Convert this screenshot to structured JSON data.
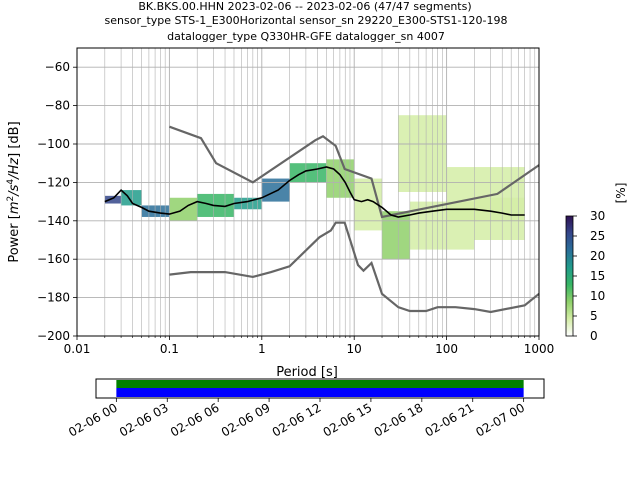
{
  "chart_data": [
    {
      "type": "heatmap",
      "title_lines": [
        "BK.BKS.00.HHN   2023-02-06 -- 2023-02-06  (47/47 segments)",
        "sensor_type STS-1_E300Horizontal sensor_sn 29220_E300-STS1-120-198",
        "datalogger_type Q330HR-GFE datalogger_sn 4007"
      ],
      "xlabel": "Period [s]",
      "ylabel_parts": [
        "Power [",
        "m",
        "2",
        "/s",
        "4",
        "/Hz",
        "] [dB]"
      ],
      "xscale": "log",
      "xlim": [
        0.01,
        1000
      ],
      "ylim": [
        -200,
        -50
      ],
      "x_ticks": [
        0.01,
        0.1,
        1,
        10,
        100,
        1000
      ],
      "x_tick_labels": [
        "0.01",
        "0.1",
        "1",
        "10",
        "100",
        "1000"
      ],
      "y_ticks": [
        -200,
        -180,
        -160,
        -140,
        -120,
        -100,
        -80,
        -60
      ],
      "y_tick_labels": [
        "−200",
        "−180",
        "−160",
        "−140",
        "−120",
        "−100",
        "−80",
        "−60"
      ],
      "grid": true,
      "colorbar": {
        "label": "[%]",
        "range": [
          0,
          30
        ],
        "ticks": [
          0,
          5,
          10,
          15,
          20,
          25,
          30
        ],
        "tick_labels": [
          "0",
          "5",
          "10",
          "15",
          "20",
          "25",
          "30"
        ],
        "colors": [
          "#ffffff",
          "#d4eda6",
          "#8fd06a",
          "#37b565",
          "#219c8b",
          "#2a6f99",
          "#34468a",
          "#2e1152"
        ]
      },
      "series": [
        {
          "role": "mean",
          "color": "#000000",
          "points": [
            [
              0.02,
              -130
            ],
            [
              0.025,
              -128
            ],
            [
              0.03,
              -124
            ],
            [
              0.035,
              -127
            ],
            [
              0.04,
              -131
            ],
            [
              0.05,
              -133
            ],
            [
              0.06,
              -135
            ],
            [
              0.08,
              -136
            ],
            [
              0.1,
              -136.5
            ],
            [
              0.13,
              -135
            ],
            [
              0.16,
              -132
            ],
            [
              0.2,
              -130
            ],
            [
              0.25,
              -131
            ],
            [
              0.3,
              -132
            ],
            [
              0.4,
              -132.5
            ],
            [
              0.5,
              -131
            ],
            [
              0.7,
              -130
            ],
            [
              1,
              -128
            ],
            [
              1.5,
              -124
            ],
            [
              2,
              -119
            ],
            [
              2.5,
              -116
            ],
            [
              3,
              -114
            ],
            [
              4,
              -113
            ],
            [
              5,
              -112
            ],
            [
              6,
              -113
            ],
            [
              7,
              -116
            ],
            [
              8,
              -120
            ],
            [
              9,
              -125
            ],
            [
              10,
              -129
            ],
            [
              12,
              -130
            ],
            [
              14,
              -129
            ],
            [
              16,
              -130
            ],
            [
              20,
              -133
            ],
            [
              25,
              -137
            ],
            [
              30,
              -138
            ],
            [
              40,
              -137
            ],
            [
              50,
              -136
            ],
            [
              70,
              -135
            ],
            [
              100,
              -134
            ],
            [
              150,
              -134
            ],
            [
              200,
              -134
            ],
            [
              300,
              -135
            ],
            [
              400,
              -136
            ],
            [
              500,
              -137
            ],
            [
              700,
              -137
            ]
          ]
        },
        {
          "role": "noise-model-high",
          "color": "#666666",
          "points": [
            [
              0.1,
              -91
            ],
            [
              0.22,
              -97
            ],
            [
              0.32,
              -110
            ],
            [
              0.8,
              -120
            ],
            [
              3.8,
              -98
            ],
            [
              4.6,
              -96
            ],
            [
              6.3,
              -101
            ],
            [
              7.9,
              -113
            ],
            [
              15.4,
              -118
            ],
            [
              20,
              -138
            ],
            [
              354.8,
              -126
            ],
            [
              1000,
              -111
            ]
          ]
        },
        {
          "role": "noise-model-low",
          "color": "#666666",
          "points": [
            [
              0.1,
              -168
            ],
            [
              0.17,
              -166.7
            ],
            [
              0.4,
              -166.7
            ],
            [
              0.8,
              -169.2
            ],
            [
              1.26,
              -166.7
            ],
            [
              2,
              -163.7
            ],
            [
              4.2,
              -148.6
            ],
            [
              5.6,
              -145
            ],
            [
              6.3,
              -141
            ],
            [
              7.9,
              -141
            ],
            [
              11,
              -163
            ],
            [
              12.6,
              -166
            ],
            [
              15.4,
              -162
            ],
            [
              20,
              -178
            ],
            [
              30,
              -185
            ],
            [
              40,
              -187
            ],
            [
              60,
              -187
            ],
            [
              80,
              -185
            ],
            [
              125,
              -185
            ],
            [
              200,
              -186
            ],
            [
              300,
              -187.5
            ],
            [
              700,
              -184
            ],
            [
              1000,
              -178
            ]
          ]
        }
      ],
      "density_bands": [
        {
          "x": [
            0.02,
            0.03
          ],
          "y": [
            -131,
            -127
          ],
          "level": 24
        },
        {
          "x": [
            0.03,
            0.05
          ],
          "y": [
            -132,
            -124
          ],
          "level": 18
        },
        {
          "x": [
            0.05,
            0.1
          ],
          "y": [
            -138,
            -132
          ],
          "level": 20
        },
        {
          "x": [
            0.1,
            0.2
          ],
          "y": [
            -140,
            -128
          ],
          "level": 10
        },
        {
          "x": [
            0.2,
            0.5
          ],
          "y": [
            -138,
            -126
          ],
          "level": 12
        },
        {
          "x": [
            0.5,
            1
          ],
          "y": [
            -134,
            -128
          ],
          "level": 16
        },
        {
          "x": [
            1,
            2
          ],
          "y": [
            -130,
            -118
          ],
          "level": 20
        },
        {
          "x": [
            2,
            5
          ],
          "y": [
            -120,
            -110
          ],
          "level": 14
        },
        {
          "x": [
            5,
            10
          ],
          "y": [
            -128,
            -108
          ],
          "level": 8
        },
        {
          "x": [
            10,
            20
          ],
          "y": [
            -145,
            -118
          ],
          "level": 6
        },
        {
          "x": [
            20,
            40
          ],
          "y": [
            -160,
            -135
          ],
          "level": 8
        },
        {
          "x": [
            30,
            100
          ],
          "y": [
            -125,
            -85
          ],
          "level": 3
        },
        {
          "x": [
            40,
            200
          ],
          "y": [
            -155,
            -130
          ],
          "level": 6
        },
        {
          "x": [
            100,
            700
          ],
          "y": [
            -140,
            -112
          ],
          "level": 4
        },
        {
          "x": [
            200,
            700
          ],
          "y": [
            -150,
            -128
          ],
          "level": 5
        }
      ]
    },
    {
      "type": "timeline",
      "x_tick_labels": [
        "02-06 00",
        "02-06 03",
        "02-06 06",
        "02-06 09",
        "02-06 12",
        "02-06 15",
        "02-06 18",
        "02-06 21",
        "02-07 00"
      ],
      "range_hours": [
        -1.2,
        25.2
      ],
      "coverage_hours": [
        0,
        24
      ],
      "colors": {
        "top": "#008000",
        "bottom": "#0000ff"
      }
    }
  ]
}
